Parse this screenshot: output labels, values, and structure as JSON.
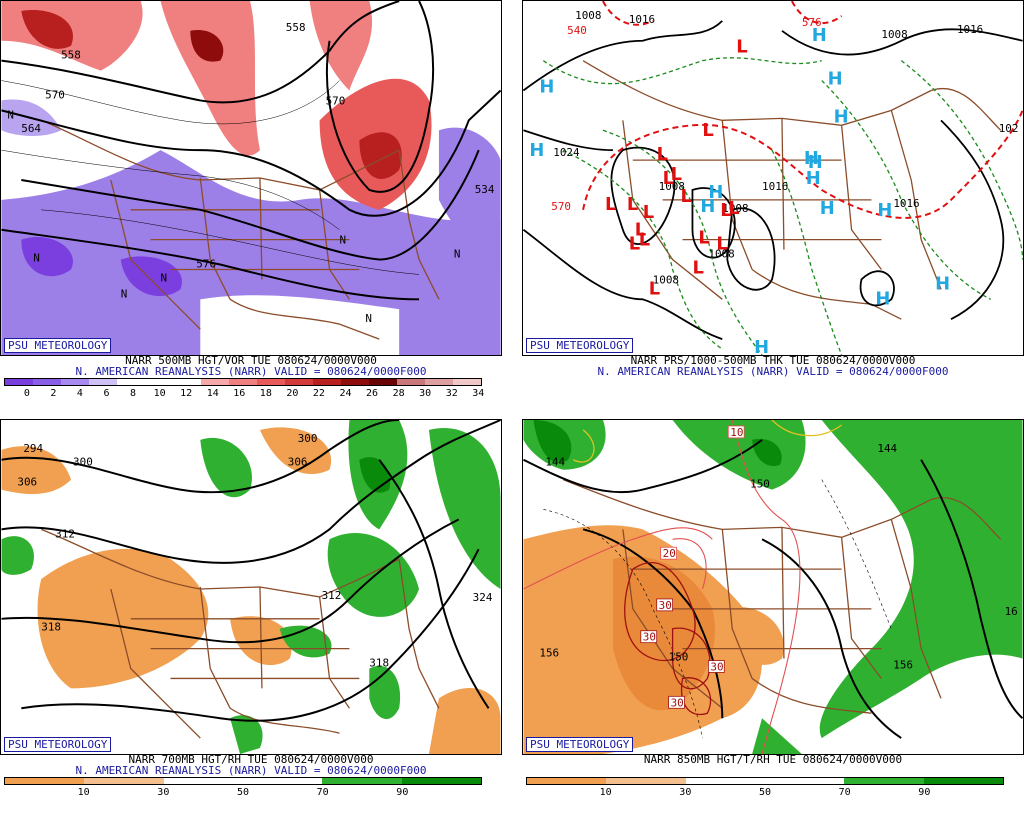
{
  "branding": "PSU METEOROLOGY",
  "panels": [
    {
      "id": "500mb",
      "title_line": "NARR 500MB HGT/VOR TUE 080624/0000V000",
      "source_line": "N. AMERICAN REANALYSIS (NARR) VALID = 080624/0000F000",
      "colorbar": {
        "ticks": [
          "0",
          "2",
          "4",
          "6",
          "8",
          "10",
          "12",
          "14",
          "16",
          "18",
          "20",
          "22",
          "24",
          "26",
          "28",
          "30",
          "32",
          "34"
        ],
        "colors": [
          "#7b3fe0",
          "#8a5ee6",
          "#a98af0",
          "#cfc0f6",
          "#ffffff",
          "#ffffff",
          "#ffffff",
          "#f7a8a8",
          "#f07f7f",
          "#e85a5a",
          "#d43a3a",
          "#b82020",
          "#8e0c0c",
          "#6a0404",
          "#c87878",
          "#dda0a0",
          "#f0c8c8"
        ]
      },
      "labels": [
        "558",
        "570",
        "570",
        "558",
        "534",
        "564",
        "576",
        "N",
        "N",
        "N",
        "N",
        "N",
        "N",
        "N"
      ]
    },
    {
      "id": "prs",
      "title_line": "NARR PRS/1000-500MB THK TUE 080624/0000V000",
      "source_line": "N. AMERICAN REANALYSIS (NARR) VALID = 080624/0000F000",
      "labels": [
        "1008",
        "1016",
        "1008",
        "1016",
        "1024",
        "1008",
        "1016",
        "1008",
        "1008",
        "1016",
        "1008",
        "1024",
        "570",
        "540",
        "576",
        "102"
      ],
      "highs": [
        "H",
        "H",
        "H",
        "H",
        "H",
        "H",
        "H",
        "H",
        "H",
        "H",
        "H",
        "H",
        "H",
        "H",
        "H"
      ],
      "lows": [
        "L",
        "L",
        "L",
        "L",
        "L",
        "L",
        "L",
        "L",
        "L",
        "L",
        "L",
        "L",
        "L",
        "L",
        "L",
        "L",
        "L",
        "L"
      ]
    },
    {
      "id": "700mb",
      "title_line": "NARR 700MB HGT/RH TUE 080624/0000V000",
      "source_line": "N. AMERICAN REANALYSIS (NARR) VALID = 080624/0000F000",
      "colorbar": {
        "ticks": [
          "10",
          "30",
          "50",
          "70",
          "90"
        ],
        "colors": [
          "#f0a050",
          "#f5c090",
          "#ffffff",
          "#ffffff",
          "#30b030",
          "#0a8a0a"
        ]
      },
      "labels": [
        "294",
        "300",
        "306",
        "300",
        "306",
        "312",
        "318",
        "312",
        "318",
        "324"
      ]
    },
    {
      "id": "850mb",
      "title_line": "NARR 850MB HGT/T/RH TUE 080624/0000V000",
      "colorbar": {
        "ticks": [
          "10",
          "30",
          "50",
          "70",
          "90"
        ],
        "colors": [
          "#f0a050",
          "#f5c090",
          "#ffffff",
          "#ffffff",
          "#30b030",
          "#0a8a0a"
        ]
      },
      "labels": [
        "144",
        "150",
        "144",
        "10",
        "20",
        "30",
        "30",
        "30",
        "30",
        "150",
        "156",
        "156",
        "16"
      ]
    }
  ],
  "colors": {
    "border": "#8b4c2a",
    "height_contour": "#000000",
    "thickness_dashed": "#1a8a1a",
    "high": "#22a8e0",
    "low": "#e01010",
    "caption_blue": "#1a1aa0"
  }
}
